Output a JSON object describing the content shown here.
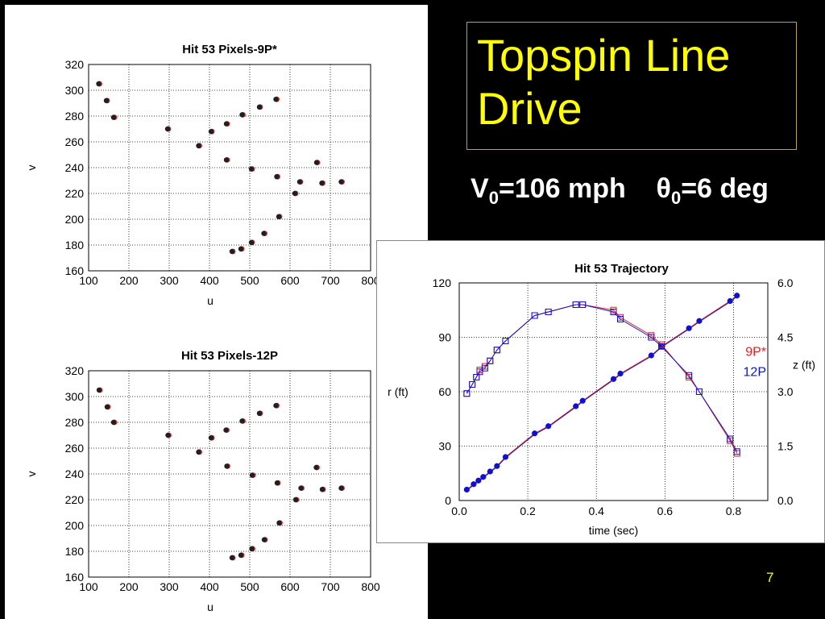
{
  "slide": {
    "title": "Topspin Line\nDrive",
    "param_v_symbol": "V",
    "param_v_sub": "0",
    "param_v_value": "=106 mph",
    "param_theta_symbol": "θ",
    "param_theta_sub": "0",
    "param_theta_value": "=6 deg",
    "page_number": "7",
    "colors": {
      "background": "#000000",
      "title": "#ffff00",
      "params": "#ffffff",
      "series_9p": "#e02020",
      "series_12p": "#1010d0",
      "pixel_marker": "#202020"
    }
  },
  "chart_data": [
    {
      "type": "scatter",
      "title": "Hit 53 Pixels-9P*",
      "xlabel": "u",
      "ylabel": "v",
      "xlim": [
        100,
        800
      ],
      "ylim": [
        160,
        320
      ],
      "xticks": [
        100,
        200,
        300,
        400,
        500,
        600,
        700,
        800
      ],
      "yticks": [
        160,
        180,
        200,
        220,
        240,
        260,
        280,
        300,
        320
      ],
      "grid": "dotted",
      "points": [
        [
          125,
          305
        ],
        [
          144,
          292
        ],
        [
          162,
          279
        ],
        [
          296,
          270
        ],
        [
          373,
          257
        ],
        [
          404,
          268
        ],
        [
          442,
          274
        ],
        [
          481,
          281
        ],
        [
          524,
          287
        ],
        [
          565,
          293
        ],
        [
          442,
          246
        ],
        [
          504,
          239
        ],
        [
          567,
          233
        ],
        [
          624,
          229
        ],
        [
          679,
          228
        ],
        [
          727,
          229
        ],
        [
          666,
          244
        ],
        [
          612,
          220
        ],
        [
          572,
          202
        ],
        [
          535,
          189
        ],
        [
          504,
          182
        ],
        [
          478,
          177
        ],
        [
          456,
          175
        ]
      ]
    },
    {
      "type": "scatter",
      "title": "Hit 53 Pixels-12P",
      "xlabel": "u",
      "ylabel": "v",
      "xlim": [
        100,
        800
      ],
      "ylim": [
        160,
        320
      ],
      "xticks": [
        100,
        200,
        300,
        400,
        500,
        600,
        700,
        800
      ],
      "yticks": [
        160,
        180,
        200,
        220,
        240,
        260,
        280,
        300,
        320
      ],
      "grid": "dotted",
      "points": [
        [
          126,
          305
        ],
        [
          146,
          292
        ],
        [
          162,
          280
        ],
        [
          297,
          270
        ],
        [
          373,
          257
        ],
        [
          404,
          268
        ],
        [
          441,
          274
        ],
        [
          481,
          281
        ],
        [
          524,
          287
        ],
        [
          565,
          293
        ],
        [
          443,
          246
        ],
        [
          506,
          239
        ],
        [
          568,
          233
        ],
        [
          627,
          229
        ],
        [
          680,
          228
        ],
        [
          727,
          229
        ],
        [
          665,
          245
        ],
        [
          614,
          220
        ],
        [
          573,
          202
        ],
        [
          536,
          189
        ],
        [
          505,
          182
        ],
        [
          478,
          177
        ],
        [
          456,
          175
        ]
      ]
    },
    {
      "type": "line",
      "title": "Hit 53 Trajectory",
      "xlabel": "time (sec)",
      "ylabel_left": "r (ft)",
      "ylabel_right": "z (ft)",
      "xlim": [
        0.0,
        0.9
      ],
      "ylim_left": [
        0,
        120
      ],
      "ylim_right": [
        0.0,
        6.0
      ],
      "xtick_labels": [
        "0.0",
        "0.2",
        "0.4",
        "0.6",
        "0.8"
      ],
      "ytick_labels_left": [
        "0",
        "30",
        "60",
        "90",
        "120"
      ],
      "ytick_labels_right": [
        "0.0",
        "1.5",
        "3.0",
        "4.5",
        "6.0"
      ],
      "grid": "dotted",
      "legend": [
        "9P*",
        "12P"
      ],
      "legend_position": "right",
      "r_series": {
        "marker": "filled-circle",
        "t": [
          0.022,
          0.042,
          0.056,
          0.07,
          0.09,
          0.11,
          0.135,
          0.22,
          0.26,
          0.34,
          0.36,
          0.45,
          0.47,
          0.56,
          0.59,
          0.67,
          0.7,
          0.79,
          0.81
        ],
        "r": [
          6,
          9,
          11,
          13,
          16,
          19,
          24,
          37,
          41,
          52,
          55,
          67,
          70,
          80,
          85,
          95,
          99,
          110,
          113
        ]
      },
      "z_series": {
        "marker": "open-square",
        "t": [
          0.022,
          0.038,
          0.05,
          0.06,
          0.075,
          0.09,
          0.11,
          0.135,
          0.22,
          0.26,
          0.34,
          0.36,
          0.45,
          0.47,
          0.56,
          0.59,
          0.67,
          0.7,
          0.79,
          0.81
        ],
        "z_9p": [
          2.95,
          3.2,
          3.4,
          3.6,
          3.7,
          3.85,
          4.15,
          4.4,
          5.1,
          5.2,
          5.4,
          5.4,
          5.25,
          5.05,
          4.55,
          4.3,
          3.4,
          3.0,
          1.65,
          1.3
        ],
        "z_12p": [
          2.95,
          3.2,
          3.4,
          3.55,
          3.65,
          3.85,
          4.15,
          4.4,
          5.1,
          5.2,
          5.4,
          5.4,
          5.2,
          5.0,
          4.5,
          4.25,
          3.45,
          3.0,
          1.7,
          1.35
        ]
      }
    }
  ]
}
